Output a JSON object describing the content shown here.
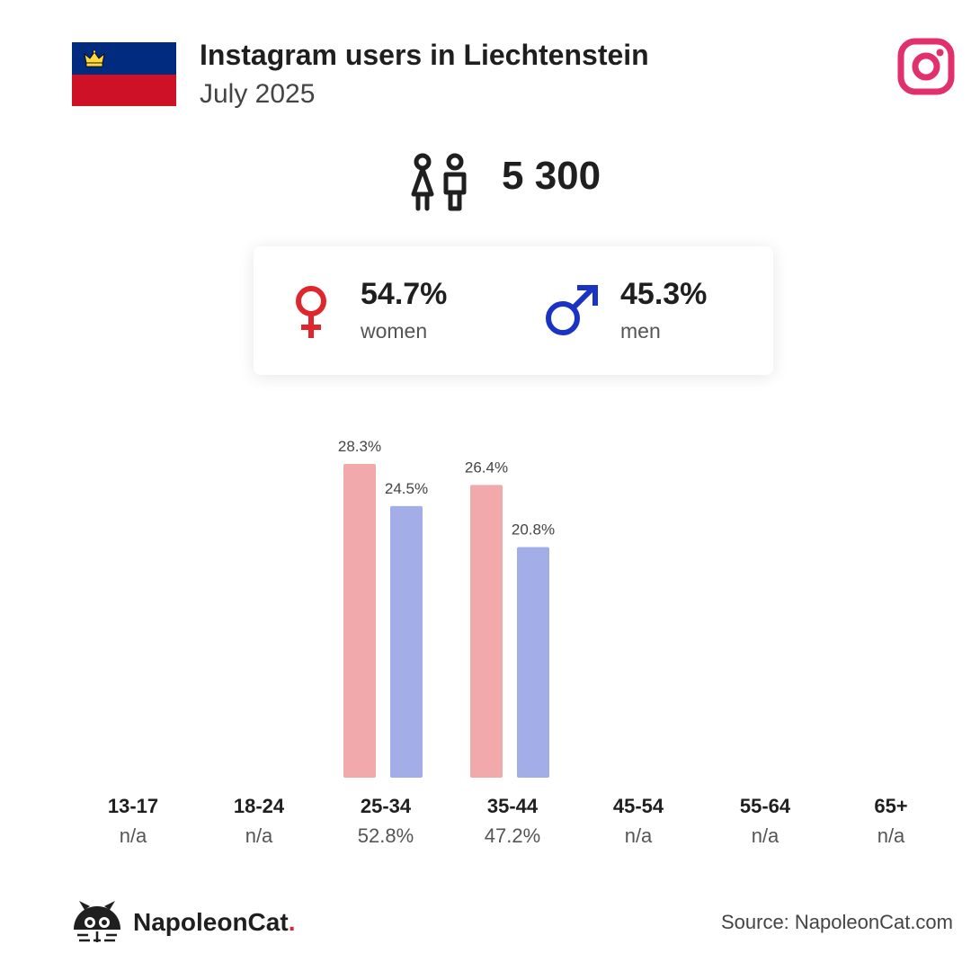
{
  "header": {
    "title": "Instagram users in Liechtenstein",
    "subtitle": "July 2025"
  },
  "icons": {
    "flag": "liechtenstein-flag-icon",
    "platform": "instagram-icon",
    "users": "people-icon",
    "female": "female-symbol-icon",
    "male": "male-symbol-icon",
    "brand": "napoleoncat-logo-icon"
  },
  "total_users": "5 300",
  "gender": {
    "women_pct": "54.7%",
    "women_label": "women",
    "men_pct": "45.3%",
    "men_label": "men"
  },
  "chart_data": {
    "type": "bar",
    "categories": [
      "13-17",
      "18-24",
      "25-34",
      "35-44",
      "45-54",
      "55-64",
      "65+"
    ],
    "category_shares": [
      "n/a",
      "n/a",
      "52.8%",
      "47.2%",
      "n/a",
      "n/a",
      "n/a"
    ],
    "series": [
      {
        "values": [
          null,
          null,
          28.3,
          26.4,
          null,
          null,
          null
        ],
        "labels": [
          "",
          "",
          "28.3%",
          "26.4%",
          "",
          "",
          ""
        ],
        "color": "#f2a9ab"
      },
      {
        "values": [
          null,
          null,
          24.5,
          20.8,
          null,
          null,
          null
        ],
        "labels": [
          "",
          "",
          "24.5%",
          "20.8%",
          "",
          "",
          ""
        ],
        "color": "#a3aee8"
      }
    ],
    "ylim": [
      0,
      30
    ]
  },
  "colors": {
    "women": "#e0262d",
    "men": "#1a33c4",
    "instagram": "#e1306c",
    "flag_blue": "#002b7f",
    "flag_red": "#ce1126"
  },
  "footer": {
    "brand": "NapoleonCat",
    "brand_dot": ".",
    "source": "Source: NapoleonCat.com"
  }
}
